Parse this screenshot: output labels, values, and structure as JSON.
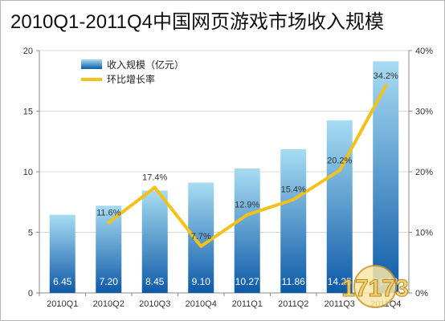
{
  "title": "2010Q1-2011Q4中国网页游戏市场收入规模",
  "colors": {
    "bar_top": "#a8dcf2",
    "bar_bottom": "#0d5aa8",
    "line": "#f2c21a",
    "grid": "#d9d9d9"
  },
  "chart_data": {
    "type": "bar",
    "title": "2010Q1-2011Q4中国网页游戏市场收入规模",
    "categories": [
      "2010Q1",
      "2010Q2",
      "2010Q3",
      "2010Q4",
      "2011Q1",
      "2011Q2",
      "2011Q3",
      "2011Q4"
    ],
    "series": [
      {
        "name": "收入规模（亿元）",
        "type": "bar",
        "axis": "left",
        "values": [
          6.45,
          7.2,
          8.45,
          9.1,
          10.27,
          11.86,
          14.25,
          19.12
        ],
        "labels": [
          "6.45",
          "7.20",
          "8.45",
          "9.10",
          "10.27",
          "11.86",
          "14.25",
          "19.12"
        ]
      },
      {
        "name": "环比增长率",
        "type": "line",
        "axis": "right",
        "values": [
          null,
          11.6,
          17.4,
          7.7,
          12.9,
          15.4,
          20.2,
          34.2
        ],
        "labels": [
          "",
          "11.6%",
          "17.4%",
          "7.7%",
          "12.9%",
          "15.4%",
          "20.2%",
          "34.2%"
        ]
      }
    ],
    "y_left": {
      "min": 0,
      "max": 20,
      "ticks": [
        0,
        5,
        10,
        15,
        20
      ]
    },
    "y_right": {
      "min": 0,
      "max": 40,
      "ticks": [
        0,
        10,
        20,
        30,
        40
      ],
      "tick_labels": [
        "0%",
        "10%",
        "20%",
        "30%",
        "40%"
      ]
    },
    "grid": true,
    "legend": "top-left",
    "watermark": "17173"
  }
}
